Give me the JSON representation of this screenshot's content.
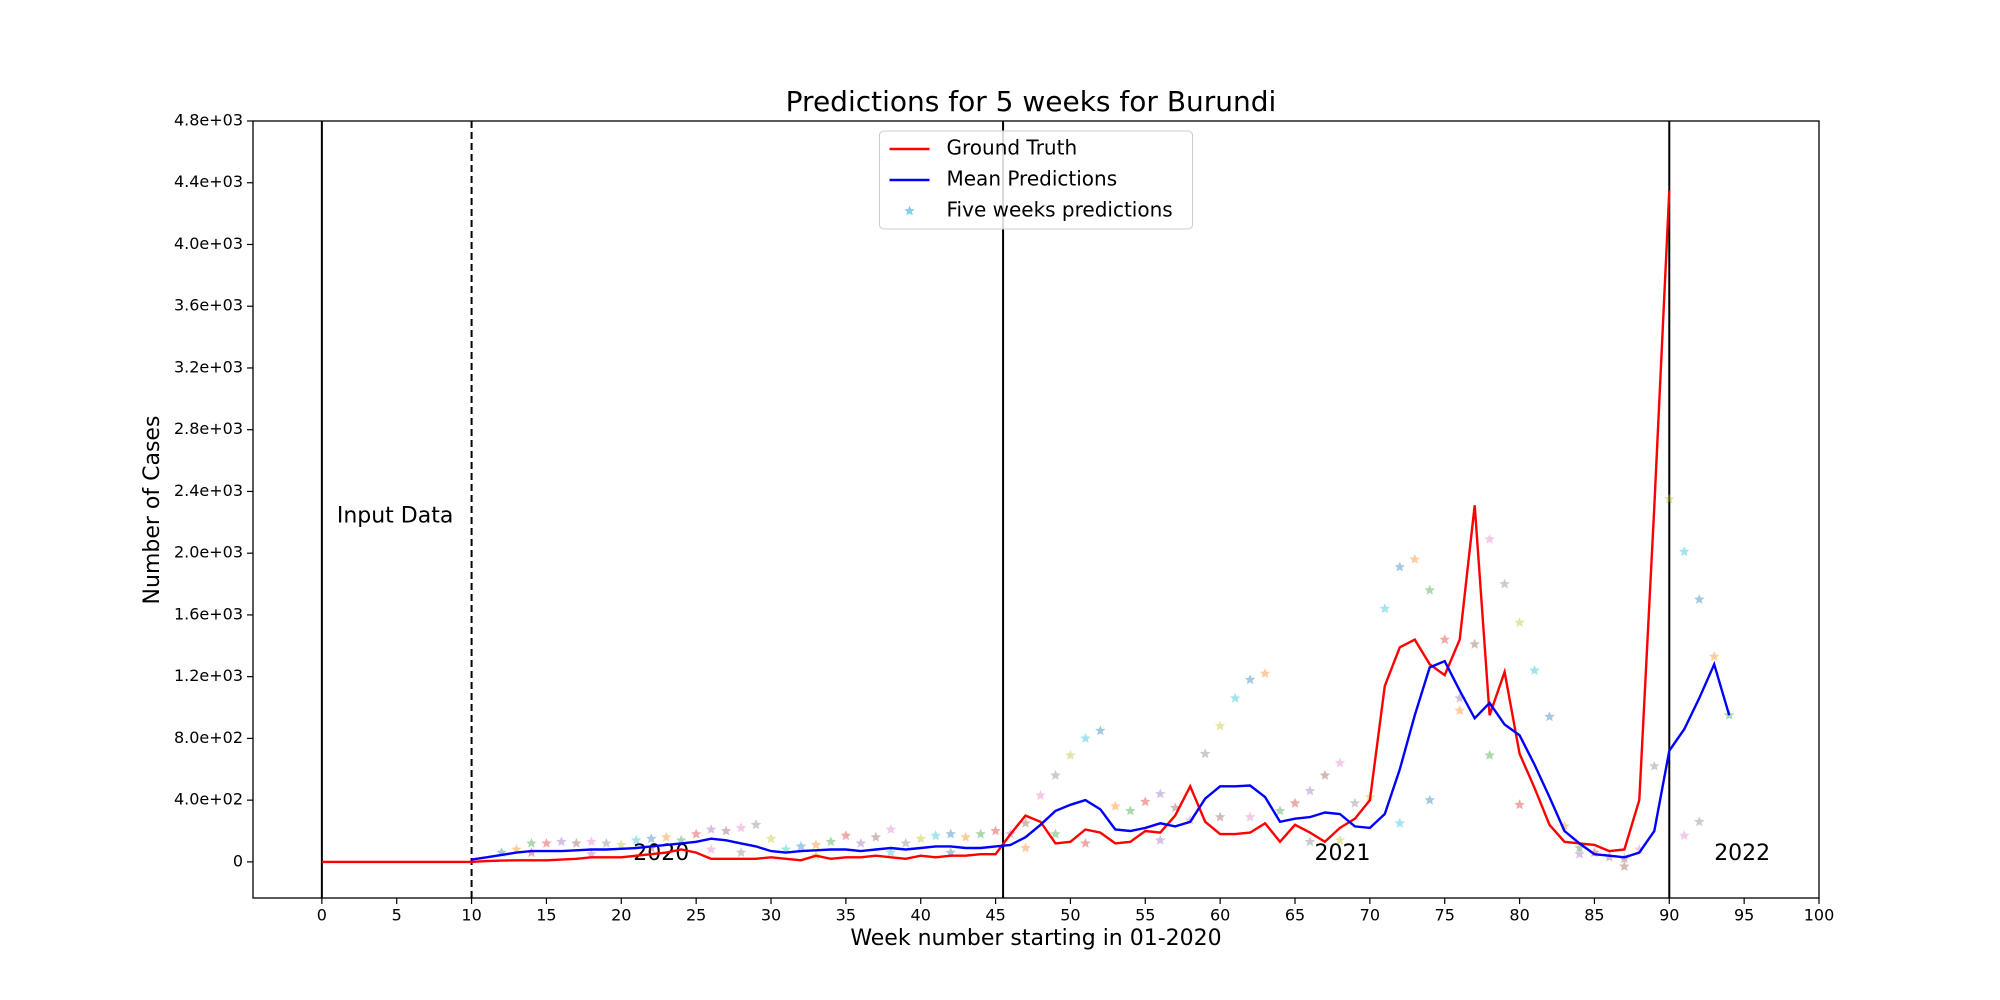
{
  "chart_data": {
    "type": "line",
    "title": "Predictions for 5 weeks for Burundi",
    "x_label": "Week number starting in 01-2020",
    "y_label": "Number of Cases",
    "xlim": [
      -4.6,
      100
    ],
    "ylim": [
      -234,
      4800
    ],
    "xticks": [
      0,
      5,
      10,
      15,
      20,
      25,
      30,
      35,
      40,
      45,
      50,
      55,
      60,
      65,
      70,
      75,
      80,
      85,
      90,
      95,
      100
    ],
    "yticks": [
      0,
      {
        "value": 400,
        "label": "4.0e+02"
      },
      {
        "value": 800,
        "label": "8.0e+02"
      },
      {
        "value": 1200,
        "label": "1.2e+03"
      },
      {
        "value": 1600,
        "label": "1.6e+03"
      },
      {
        "value": 2000,
        "label": "2.0e+03"
      },
      {
        "value": 2400,
        "label": "2.4e+03"
      },
      {
        "value": 2800,
        "label": "2.8e+03"
      },
      {
        "value": 3200,
        "label": "3.2e+03"
      },
      {
        "value": 3600,
        "label": "3.6e+03"
      },
      {
        "value": 4000,
        "label": "4.0e+03"
      },
      {
        "value": 4400,
        "label": "4.4e+03"
      },
      {
        "value": 4800,
        "label": "4.8e+03"
      }
    ],
    "legend": "upper center",
    "vlines": [
      {
        "x": 0,
        "style": "solid"
      },
      {
        "x": 10,
        "style": "dashed"
      },
      {
        "x": 45.5,
        "style": "solid"
      },
      {
        "x": 90,
        "style": "solid"
      }
    ],
    "annotations": [
      {
        "text": "Input Data",
        "x": 1,
        "y": 2237
      },
      {
        "text": "2020",
        "x": 20.8,
        "y": 50
      },
      {
        "text": "2021",
        "x": 66.3,
        "y": 50
      },
      {
        "text": "2022",
        "x": 93,
        "y": 50
      }
    ],
    "series": [
      {
        "name": "Ground Truth",
        "color": "#ff0000",
        "marker": "line",
        "x": [
          0,
          1,
          2,
          3,
          4,
          5,
          6,
          7,
          8,
          9,
          10,
          11,
          12,
          13,
          14,
          15,
          16,
          17,
          18,
          19,
          20,
          21,
          22,
          23,
          24,
          25,
          26,
          27,
          28,
          29,
          30,
          31,
          32,
          33,
          34,
          35,
          36,
          37,
          38,
          39,
          40,
          41,
          42,
          43,
          44,
          45,
          46,
          47,
          48,
          49,
          50,
          51,
          52,
          53,
          54,
          55,
          56,
          57,
          58,
          59,
          60,
          61,
          62,
          63,
          64,
          65,
          66,
          67,
          68,
          69,
          70,
          71,
          72,
          73,
          74,
          75,
          76,
          77,
          78,
          79,
          80,
          81,
          82,
          83,
          84,
          85,
          86,
          87,
          88,
          89,
          90
        ],
        "values": [
          0,
          0,
          0,
          0,
          0,
          0,
          0,
          0,
          0,
          0,
          0,
          5,
          8,
          10,
          10,
          10,
          15,
          20,
          30,
          30,
          30,
          40,
          50,
          60,
          80,
          60,
          20,
          20,
          20,
          20,
          30,
          20,
          10,
          40,
          20,
          30,
          30,
          40,
          30,
          20,
          40,
          30,
          40,
          40,
          50,
          50,
          180,
          300,
          260,
          120,
          130,
          210,
          190,
          120,
          130,
          200,
          190,
          300,
          490,
          260,
          180,
          180,
          190,
          250,
          130,
          240,
          190,
          130,
          220,
          280,
          400,
          1140,
          1390,
          1440,
          1280,
          1210,
          1440,
          2310,
          950,
          1230,
          700,
          480,
          240,
          130,
          120,
          110,
          70,
          80,
          400,
          2300,
          4350
        ]
      },
      {
        "name": "Mean Predictions",
        "color": "#0000ff",
        "marker": "line",
        "x": [
          10,
          11,
          12,
          13,
          14,
          15,
          16,
          17,
          18,
          19,
          20,
          21,
          22,
          23,
          24,
          25,
          26,
          27,
          28,
          29,
          30,
          31,
          32,
          33,
          34,
          35,
          36,
          37,
          38,
          39,
          40,
          41,
          42,
          43,
          44,
          45,
          46,
          47,
          48,
          49,
          50,
          51,
          52,
          53,
          54,
          55,
          56,
          57,
          58,
          59,
          60,
          61,
          62,
          63,
          64,
          65,
          66,
          67,
          68,
          69,
          70,
          71,
          72,
          73,
          74,
          75,
          76,
          77,
          78,
          79,
          80,
          81,
          82,
          83,
          84,
          85,
          86,
          87,
          88,
          89,
          90,
          91,
          92,
          93,
          94
        ],
        "values": [
          15,
          30,
          45,
          60,
          70,
          70,
          70,
          75,
          80,
          80,
          85,
          90,
          100,
          110,
          120,
          130,
          150,
          140,
          120,
          100,
          70,
          60,
          70,
          75,
          80,
          80,
          70,
          80,
          90,
          80,
          90,
          100,
          100,
          90,
          90,
          100,
          110,
          160,
          240,
          330,
          370,
          400,
          340,
          210,
          200,
          220,
          250,
          230,
          260,
          410,
          490,
          490,
          495,
          420,
          260,
          280,
          290,
          320,
          310,
          230,
          220,
          310,
          600,
          950,
          1260,
          1300,
          1110,
          930,
          1030,
          890,
          820,
          630,
          420,
          200,
          120,
          50,
          40,
          30,
          60,
          200,
          720,
          860,
          1060,
          1280,
          950
        ]
      },
      {
        "name": "Five weeks predictions",
        "color": "#87ceeb",
        "marker": "star",
        "palette": [
          "#1f77b4",
          "#ff7f0e",
          "#2ca02c",
          "#d62728",
          "#9467bd",
          "#8c564b",
          "#e377c2",
          "#7f7f7f",
          "#bcbd22",
          "#17becf"
        ],
        "x": [
          12,
          13,
          14,
          15,
          16,
          17,
          18,
          19,
          20,
          21,
          22,
          23,
          24,
          25,
          26,
          27,
          28,
          29,
          30,
          31,
          32,
          33,
          34,
          35,
          36,
          37,
          38,
          39,
          40,
          41,
          42,
          43,
          44,
          45,
          46,
          47,
          48,
          49,
          50,
          51,
          52,
          53,
          54,
          55,
          56,
          57,
          58,
          59,
          60,
          61,
          62,
          63,
          64,
          65,
          66,
          67,
          68,
          69,
          70,
          71,
          72,
          73,
          74,
          75,
          76,
          77,
          78,
          79,
          80,
          81,
          82,
          83,
          84,
          85,
          86,
          87,
          88,
          89,
          90,
          91,
          92,
          93,
          94,
          14,
          18,
          22,
          26,
          28,
          33,
          38,
          42,
          47,
          49,
          51,
          56,
          60,
          62,
          66,
          68,
          72,
          74,
          76,
          78,
          80,
          84,
          87,
          91,
          92
        ],
        "values": [
          60,
          80,
          120,
          120,
          130,
          120,
          130,
          120,
          110,
          140,
          150,
          160,
          140,
          180,
          210,
          200,
          220,
          240,
          150,
          80,
          100,
          110,
          130,
          170,
          120,
          160,
          210,
          120,
          150,
          170,
          180,
          160,
          180,
          200,
          180,
          250,
          430,
          560,
          690,
          800,
          850,
          360,
          330,
          390,
          440,
          350,
          270,
          700,
          880,
          1060,
          1180,
          1220,
          330,
          380,
          460,
          560,
          640,
          380,
          420,
          1640,
          1910,
          1960,
          1760,
          1440,
          1060,
          1410,
          2090,
          1800,
          1550,
          1240,
          940,
          230,
          90,
          60,
          30,
          20,
          80,
          620,
          2350,
          2010,
          1700,
          1330,
          950,
          60,
          50,
          90,
          80,
          60,
          40,
          60,
          60,
          90,
          180,
          120,
          140,
          290,
          290,
          130,
          140,
          250,
          400,
          980,
          690,
          370,
          50,
          -30,
          170,
          260
        ]
      }
    ]
  }
}
